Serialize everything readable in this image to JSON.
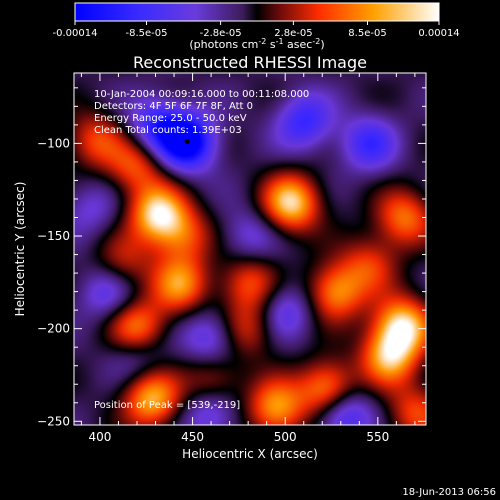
{
  "chart_data": {
    "type": "heatmap",
    "title": "Reconstructed RHESSI Image",
    "xlabel": "Heliocentric X (arcsec)",
    "ylabel": "Heliocentric Y (arcsec)",
    "xlim": [
      386,
      576
    ],
    "ylim": [
      -252,
      -62
    ],
    "xticks": [
      400,
      450,
      500,
      550
    ],
    "yticks": [
      -100,
      -150,
      -200,
      -250
    ],
    "colorbar": {
      "min": -0.00014,
      "max": 0.00014,
      "tick_labels": [
        "-0.00014",
        "-8.5e-05",
        "-2.8e-05",
        "2.8e-05",
        "8.5e-05",
        "0.00014"
      ],
      "tick_values": [
        -0.00014,
        -8.5e-05,
        -2.8e-05,
        2.8e-05,
        8.5e-05,
        0.00014
      ],
      "label_prefix": "(photons cm",
      "label_exp1": "-2",
      "label_mid": " s",
      "label_exp2": "-1",
      "label_end": " asec",
      "label_exp3": "-2",
      "label_close": ")"
    },
    "info_lines": [
      "10-Jan-2004 00:09:16.000 to 00:11:08.000",
      "Detectors: 4F 5F 6F 7F 8F, Att 0",
      "Energy Range: 25.0 - 50.0 keV",
      "Clean     Total counts: 1.39E+03"
    ],
    "peak_text": "Position of Peak = [539,-219]",
    "min_marker": {
      "x": 447,
      "y": -99
    },
    "blobs": [
      {
        "x": 431,
        "y": -138,
        "v": 1.0
      },
      {
        "x": 443,
        "y": -176,
        "v": 0.75
      },
      {
        "x": 420,
        "y": -200,
        "v": 0.85
      },
      {
        "x": 428,
        "y": -238,
        "v": 0.9
      },
      {
        "x": 503,
        "y": -132,
        "v": 1.0
      },
      {
        "x": 527,
        "y": -180,
        "v": 0.8
      },
      {
        "x": 564,
        "y": -140,
        "v": 0.7
      },
      {
        "x": 563,
        "y": -198,
        "v": 1.0
      },
      {
        "x": 556,
        "y": -215,
        "v": 0.85
      },
      {
        "x": 523,
        "y": -233,
        "v": 0.95
      },
      {
        "x": 480,
        "y": -175,
        "v": 0.6
      },
      {
        "x": 495,
        "y": -243,
        "v": 0.85
      },
      {
        "x": 397,
        "y": -98,
        "v": 0.55
      },
      {
        "x": 419,
        "y": -112,
        "v": 0.6
      },
      {
        "x": 480,
        "y": -200,
        "v": 0.5
      },
      {
        "x": 445,
        "y": -150,
        "v": 0.55
      },
      {
        "x": 412,
        "y": -165,
        "v": 0.45
      },
      {
        "x": 545,
        "y": -165,
        "v": 0.5
      },
      {
        "x": 461,
        "y": -228,
        "v": 0.5
      },
      {
        "x": 570,
        "y": -245,
        "v": 0.55
      },
      {
        "x": 447,
        "y": -99,
        "v": -1.0
      },
      {
        "x": 430,
        "y": -90,
        "v": -0.6
      },
      {
        "x": 510,
        "y": -88,
        "v": -0.6
      },
      {
        "x": 545,
        "y": -100,
        "v": -0.55
      },
      {
        "x": 404,
        "y": -180,
        "v": -0.45
      },
      {
        "x": 500,
        "y": -190,
        "v": -0.45
      },
      {
        "x": 460,
        "y": -205,
        "v": -0.5
      },
      {
        "x": 530,
        "y": -245,
        "v": -0.75
      },
      {
        "x": 460,
        "y": -245,
        "v": -0.5
      },
      {
        "x": 420,
        "y": -212,
        "v": -0.4
      },
      {
        "x": 480,
        "y": -150,
        "v": -0.35
      },
      {
        "x": 395,
        "y": -135,
        "v": -0.3
      }
    ]
  },
  "footer": {
    "date": "18-Jun-2013 06:56"
  },
  "colors": {
    "background": "#000000",
    "frame": "#ffffff",
    "marker": "#000000"
  }
}
